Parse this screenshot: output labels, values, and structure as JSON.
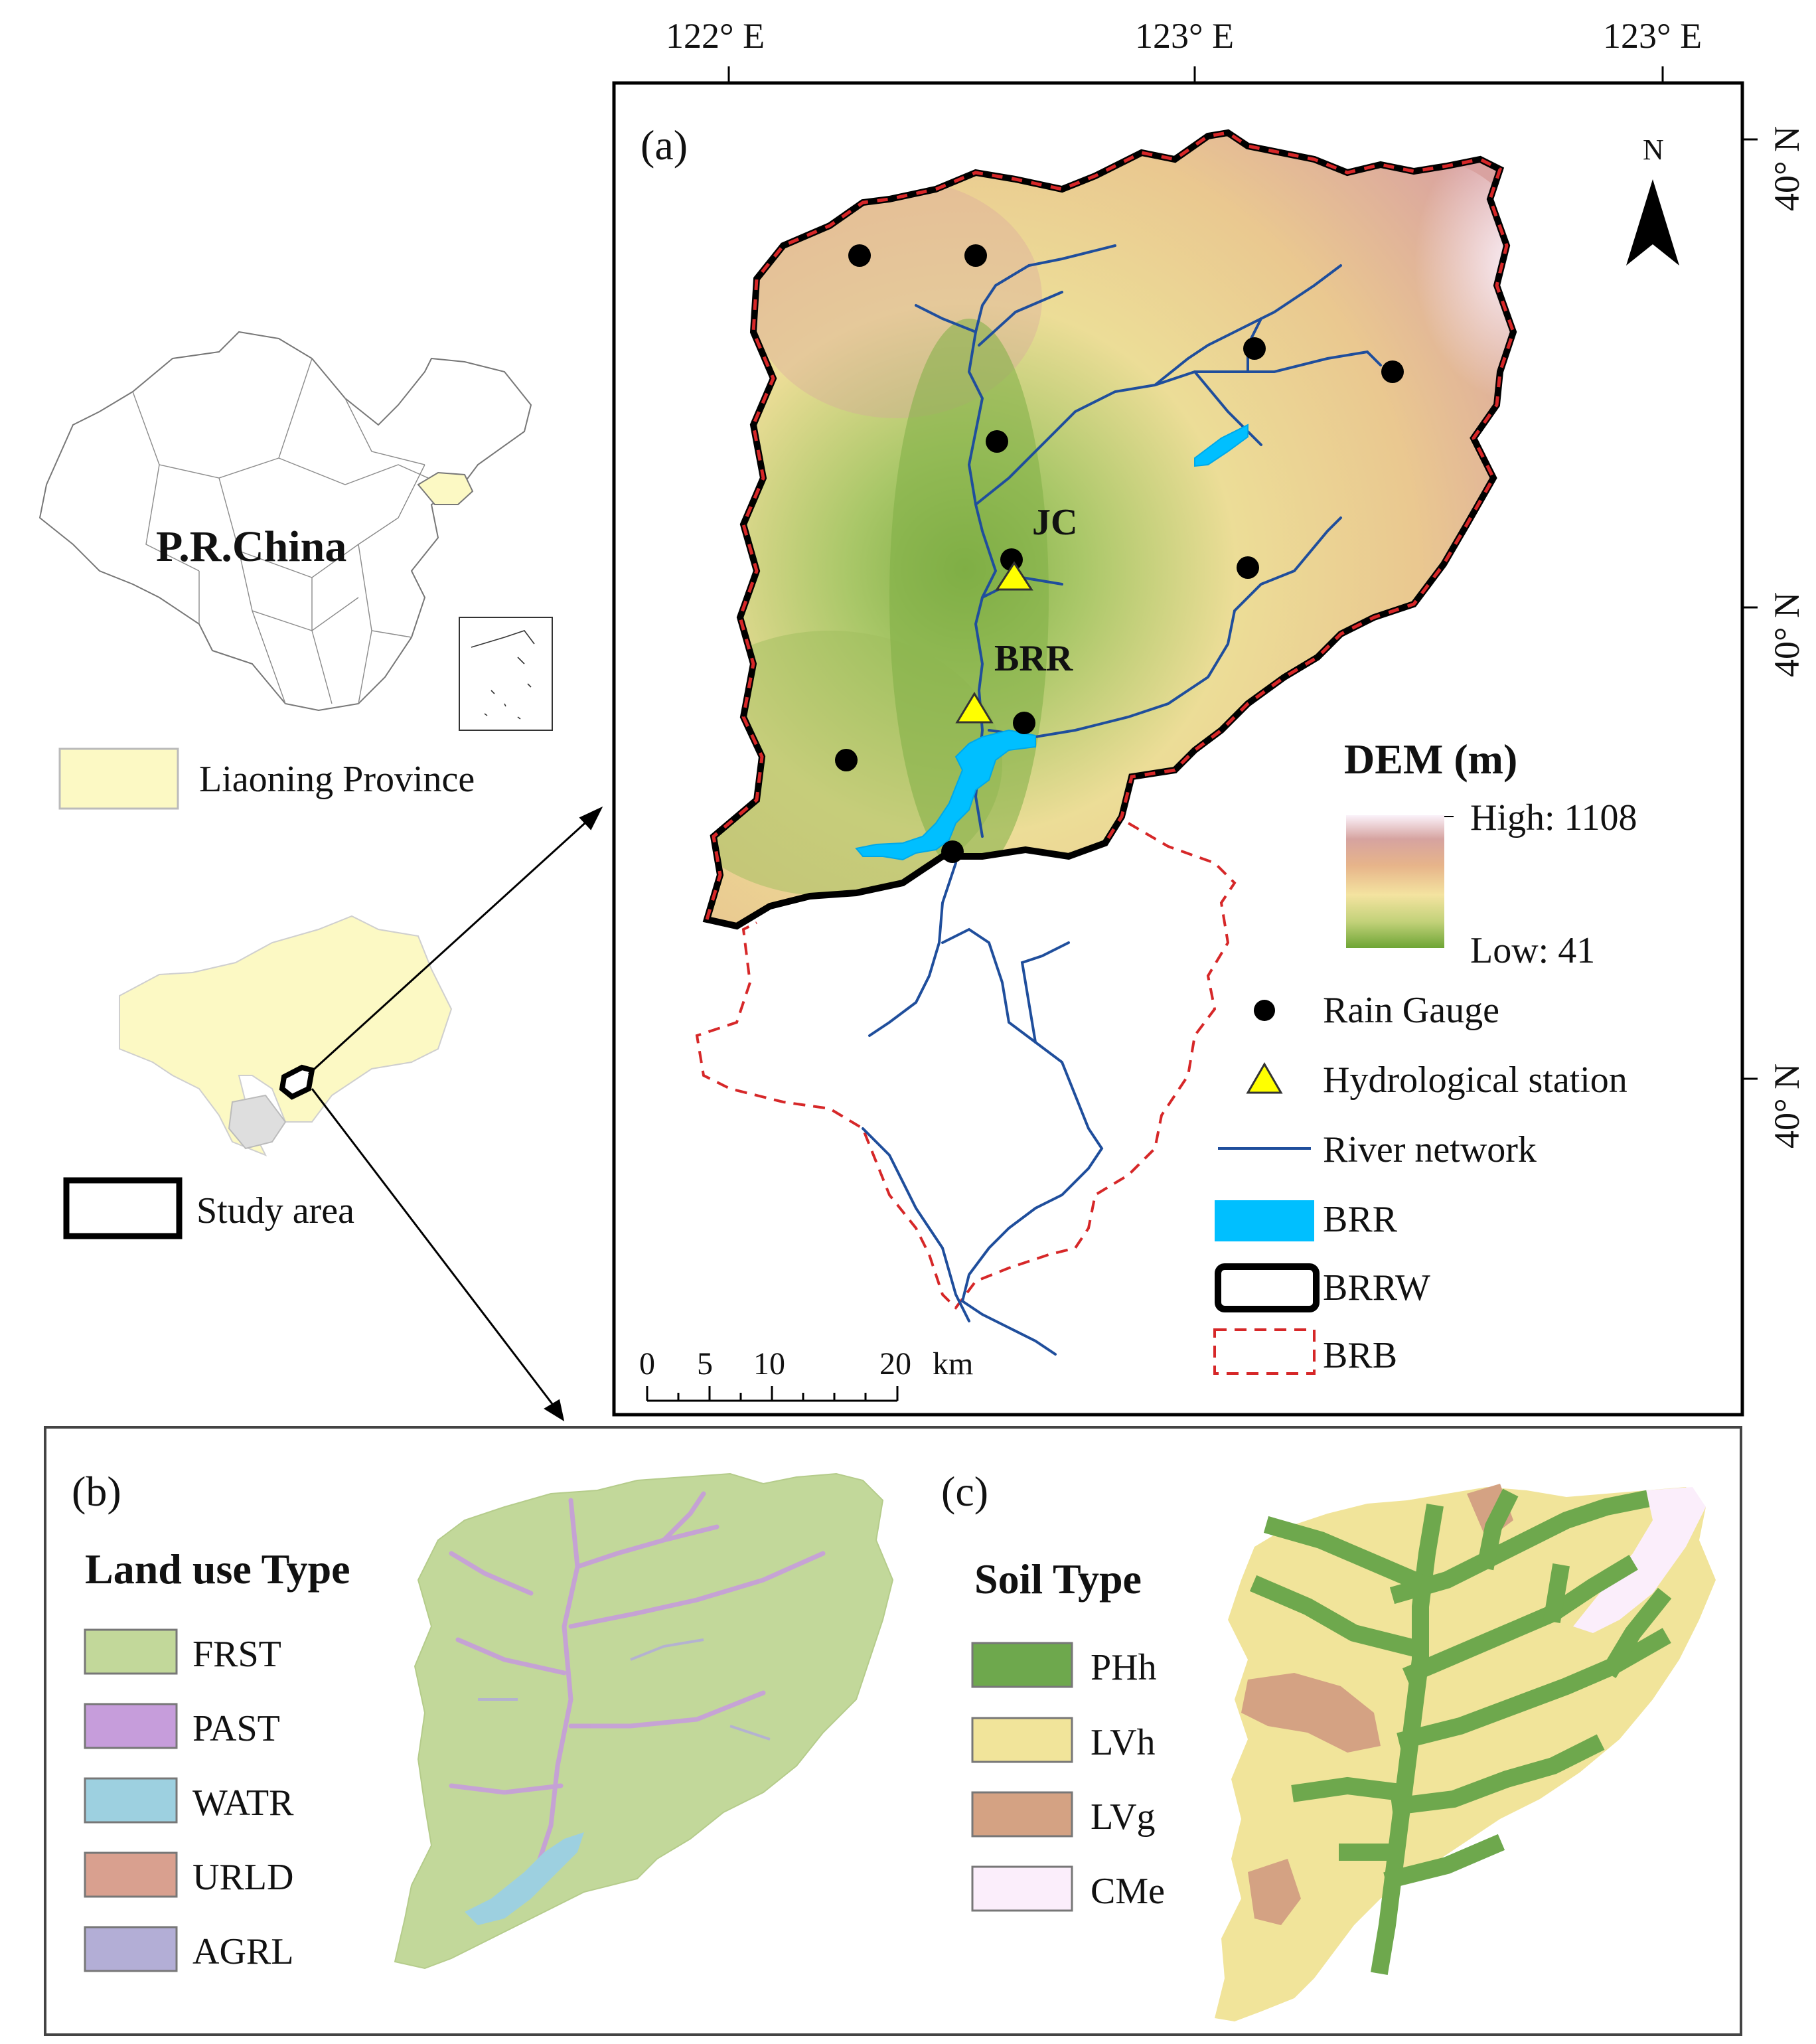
{
  "overview": {
    "china_label": "P.R.China",
    "province_legend": "Liaoning Province",
    "study_area_legend": "Study area"
  },
  "panel_a": {
    "tag": "(a)",
    "lon_ticks": [
      "122° E",
      "123° E",
      "123° E"
    ],
    "lat_ticks": [
      "40° N",
      "40° N",
      "40° N"
    ],
    "north_label": "N",
    "station_jc": "JC",
    "station_brr": "BRR",
    "dem_title": "DEM (m)",
    "dem_high": "High: 1108",
    "dem_low": "Low: 41",
    "scalebar": {
      "ticks": [
        "0",
        "5",
        "10",
        "20"
      ],
      "unit": "km"
    },
    "legend": {
      "rain_gauge": "Rain Gauge",
      "hydro_station": "Hydrological station",
      "river_network": "River network",
      "brr": "BRR",
      "brrw": "BRRW",
      "brb": "BRB"
    },
    "colors": {
      "river": "#1f4e9c",
      "reservoir": "#00bfff",
      "brb_boundary": "#d62728",
      "dem_low": "#6ea535",
      "dem_mid": "#f4e3a0",
      "dem_high": "#f8f0f6"
    }
  },
  "panel_b": {
    "tag": "(b)",
    "title": "Land use Type",
    "classes": [
      {
        "code": "FRST",
        "color": "#c2d89a"
      },
      {
        "code": "PAST",
        "color": "#c69ddb"
      },
      {
        "code": "WATR",
        "color": "#9dd0e0"
      },
      {
        "code": "URLD",
        "color": "#d9a08f"
      },
      {
        "code": "AGRL",
        "color": "#b3aed6"
      }
    ]
  },
  "panel_c": {
    "tag": "(c)",
    "title": "Soil Type",
    "classes": [
      {
        "code": "PHh",
        "color": "#6ea84d"
      },
      {
        "code": "LVh",
        "color": "#f1e49a"
      },
      {
        "code": "LVg",
        "color": "#d4a283"
      },
      {
        "code": "CMe",
        "color": "#fbeefb"
      }
    ]
  }
}
